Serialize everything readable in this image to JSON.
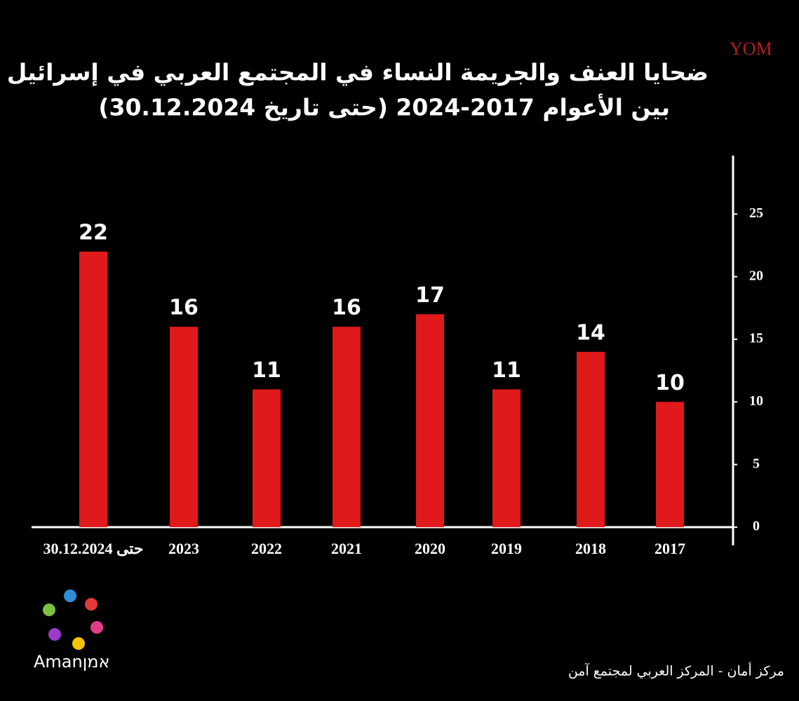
{
  "chart_data": {
    "type": "bar",
    "title": "ضحايا العنف والجريمة النساء في المجتمع العربي في إسرائيل",
    "subtitle": "بين الأعوام 2017-2024 (حتى تاريخ 30.12.2024)",
    "categories": [
      "حتى 30.12.2024",
      "2023",
      "2022",
      "2021",
      "2020",
      "2019",
      "2018",
      "2017"
    ],
    "values": [
      22,
      16,
      11,
      16,
      17,
      11,
      14,
      10
    ],
    "color": "#e0191b",
    "ylim": [
      0,
      30
    ],
    "yticks": [
      0,
      5,
      10,
      15,
      20,
      25
    ],
    "y_axis_side": "right",
    "grid": false
  },
  "watermark": "YOM",
  "logo_text": "Amanאמן",
  "footer": "مركز أمان - المركز العربي لمجتمع آمن"
}
